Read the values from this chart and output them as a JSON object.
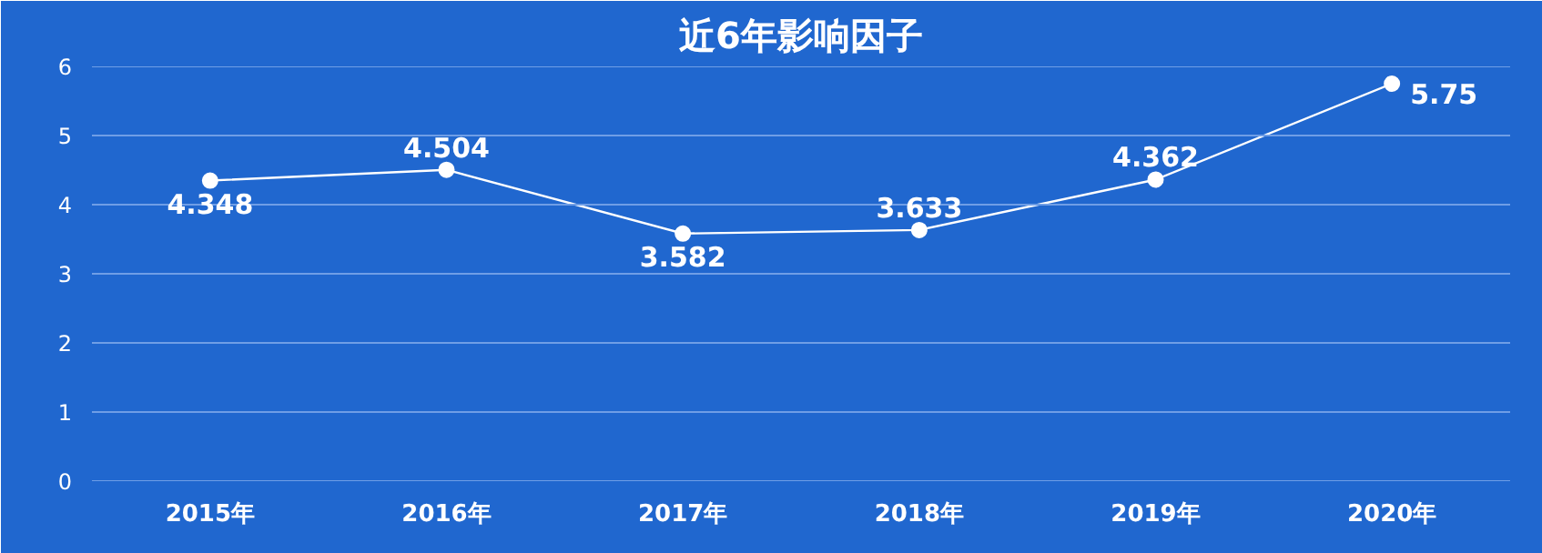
{
  "chart_data": {
    "type": "line",
    "title": "近6年影响因子",
    "categories": [
      "2015年",
      "2016年",
      "2017年",
      "2018年",
      "2019年",
      "2020年"
    ],
    "series": [
      {
        "color": "#ffffff",
        "values": [
          4.348,
          4.504,
          3.582,
          3.633,
          4.362,
          5.75
        ]
      }
    ],
    "ylim": [
      0,
      6
    ],
    "yticks": [
      0,
      1,
      2,
      3,
      4,
      5,
      6
    ],
    "grid": "y",
    "marker": "circle",
    "line_style": "solid",
    "data_labels": true
  }
}
